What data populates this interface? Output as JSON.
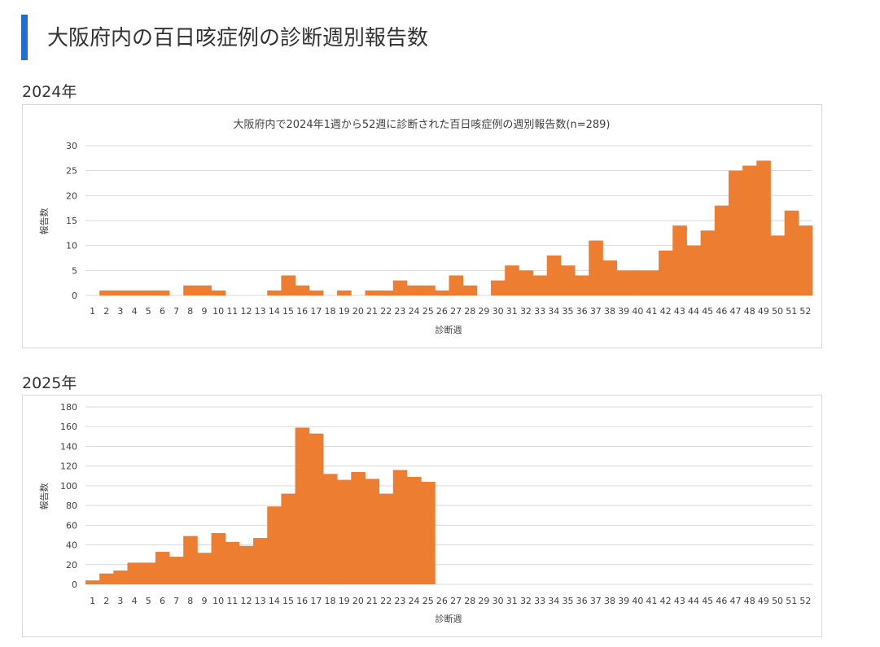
{
  "page": {
    "title": "大阪府内の百日咳症例の診断週別報告数"
  },
  "sections": [
    {
      "year_label": "2024年"
    },
    {
      "year_label": "2025年"
    }
  ],
  "colors": {
    "accent": "#1f6fd1",
    "bar": "#ed7d31",
    "grid": "#d9d9d9"
  },
  "chart_data": [
    {
      "type": "bar",
      "title": "大阪府内で2024年1週から52週に診断された百日咳症例の週別報告数(n=289)",
      "xlabel": "診断週",
      "ylabel": "報告数",
      "ylim": [
        0,
        30
      ],
      "yticks": [
        0,
        5,
        10,
        15,
        20,
        25,
        30
      ],
      "grid": true,
      "categories": [
        "1",
        "2",
        "3",
        "4",
        "5",
        "6",
        "7",
        "8",
        "9",
        "10",
        "11",
        "12",
        "13",
        "14",
        "15",
        "16",
        "17",
        "18",
        "19",
        "20",
        "21",
        "22",
        "23",
        "24",
        "25",
        "26",
        "27",
        "28",
        "29",
        "30",
        "31",
        "32",
        "33",
        "34",
        "35",
        "36",
        "37",
        "38",
        "39",
        "40",
        "41",
        "42",
        "43",
        "44",
        "45",
        "46",
        "47",
        "48",
        "49",
        "50",
        "51",
        "52"
      ],
      "values": [
        0,
        1,
        1,
        1,
        1,
        1,
        0,
        2,
        2,
        1,
        0,
        0,
        0,
        1,
        4,
        2,
        1,
        0,
        1,
        0,
        1,
        1,
        3,
        2,
        2,
        1,
        4,
        2,
        0,
        3,
        6,
        5,
        4,
        8,
        6,
        4,
        11,
        7,
        5,
        5,
        5,
        9,
        14,
        10,
        13,
        18,
        25,
        26,
        27,
        12,
        17,
        14
      ]
    },
    {
      "type": "bar",
      "title": "",
      "xlabel": "診断週",
      "ylabel": "報告数",
      "ylim": [
        0,
        180
      ],
      "yticks": [
        0,
        20,
        40,
        60,
        80,
        100,
        120,
        140,
        160,
        180
      ],
      "grid": true,
      "categories": [
        "1",
        "2",
        "3",
        "4",
        "5",
        "6",
        "7",
        "8",
        "9",
        "10",
        "11",
        "12",
        "13",
        "14",
        "15",
        "16",
        "17",
        "18",
        "19",
        "20",
        "21",
        "22",
        "23",
        "24",
        "25",
        "26",
        "27",
        "28",
        "29",
        "30",
        "31",
        "32",
        "33",
        "34",
        "35",
        "36",
        "37",
        "38",
        "39",
        "40",
        "41",
        "42",
        "43",
        "44",
        "45",
        "46",
        "47",
        "48",
        "49",
        "50",
        "51",
        "52"
      ],
      "values": [
        4,
        11,
        14,
        22,
        22,
        33,
        28,
        49,
        32,
        52,
        43,
        39,
        47,
        79,
        92,
        159,
        153,
        112,
        106,
        114,
        107,
        92,
        116,
        109,
        104,
        0,
        0,
        0,
        0,
        0,
        0,
        0,
        0,
        0,
        0,
        0,
        0,
        0,
        0,
        0,
        0,
        0,
        0,
        0,
        0,
        0,
        0,
        0,
        0,
        0,
        0,
        0
      ]
    }
  ]
}
